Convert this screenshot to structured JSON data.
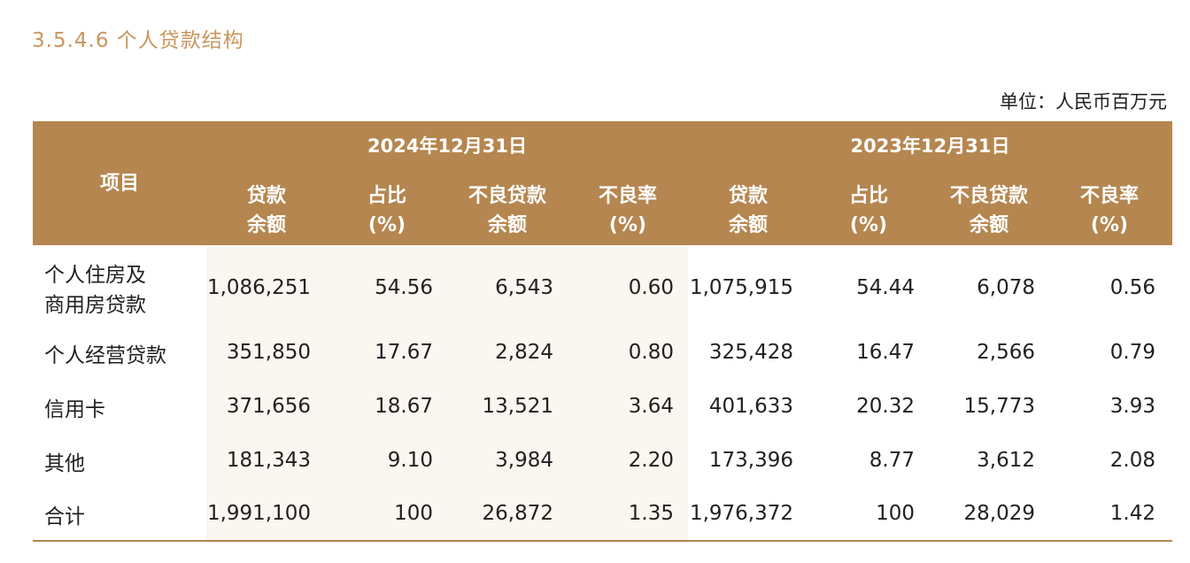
{
  "section_title": "3.5.4.6 个人贷款结构",
  "unit": "单位：人民币百万元",
  "header": {
    "item": "项目",
    "year_2024": "2024年12月31日",
    "year_2023": "2023年12月31日",
    "loan_balance": [
      "贷款",
      "余额"
    ],
    "share": [
      "占比",
      "(%)"
    ],
    "npl_balance": [
      "不良贷款",
      "余额"
    ],
    "npl_ratio": [
      "不良率",
      "(%)"
    ]
  },
  "rows": [
    {
      "name": [
        "个人住房及",
        "商用房贷款"
      ],
      "v": [
        "1,086,251",
        "54.56",
        "6,543",
        "0.60",
        "1,075,915",
        "54.44",
        "6,078",
        "0.56"
      ]
    },
    {
      "name": [
        "个人经营贷款"
      ],
      "v": [
        "351,850",
        "17.67",
        "2,824",
        "0.80",
        "325,428",
        "16.47",
        "2,566",
        "0.79"
      ]
    },
    {
      "name": [
        "信用卡"
      ],
      "v": [
        "371,656",
        "18.67",
        "13,521",
        "3.64",
        "401,633",
        "20.32",
        "15,773",
        "3.93"
      ]
    },
    {
      "name": [
        "其他"
      ],
      "v": [
        "181,343",
        "9.10",
        "3,984",
        "2.20",
        "173,396",
        "8.77",
        "3,612",
        "2.08"
      ]
    },
    {
      "name": [
        "合计"
      ],
      "v": [
        "1,991,100",
        "100",
        "26,872",
        "1.35",
        "1,976,372",
        "100",
        "28,029",
        "1.42"
      ]
    }
  ],
  "colors": {
    "header_bg": "#b5864f",
    "title": "#c9955e",
    "shade": "#faf6f0"
  }
}
